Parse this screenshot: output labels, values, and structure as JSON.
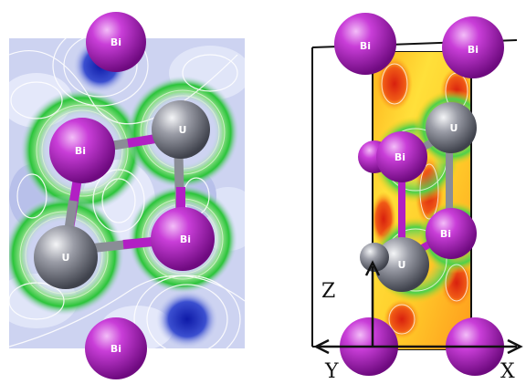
{
  "labels": {
    "bismuth": "Bi",
    "uranium": "U"
  },
  "axes": {
    "z": "Z",
    "y": "Y",
    "x": "X"
  },
  "colors": {
    "bismuth": "#b21fc4",
    "bismuth_highlight": "#e48cf0",
    "uranium": "#8a8d96",
    "uranium_highlight": "#e4e6ea",
    "left_map_background": "#c9d0f0",
    "low_density": "#1826b8",
    "medium_density": "#28c43a",
    "right_map_hot": "#e83a12",
    "right_map_warm": "#ffd21c"
  }
}
